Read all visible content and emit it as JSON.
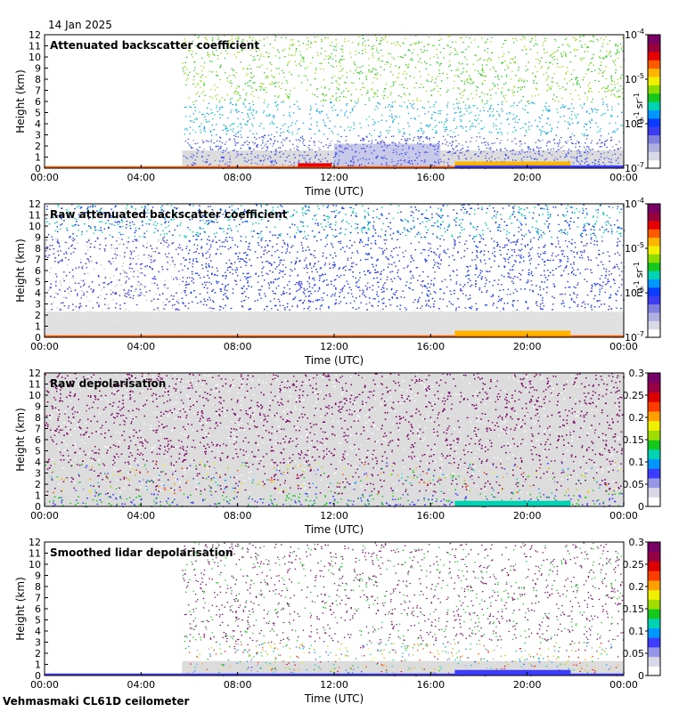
{
  "header": {
    "date": "14 Jan 2025"
  },
  "footer": {
    "instrument": "Vehmasmaki CL61D ceilometer"
  },
  "colors": {
    "background_data": "#dcdcdc",
    "log_scale": [
      "#ffffff",
      "#d8d8e6",
      "#b0b0e0",
      "#8080e0",
      "#3c3cf0",
      "#0a3cff",
      "#0096ff",
      "#00d2b4",
      "#14c81e",
      "#8cdc00",
      "#f0f000",
      "#ffb400",
      "#ff5a00",
      "#e60000",
      "#96003c",
      "#780064"
    ],
    "depol_scale": [
      "#ffffff",
      "#d8d8e6",
      "#9696e6",
      "#3c3cff",
      "#0096ff",
      "#00d2b4",
      "#14c81e",
      "#a0dc00",
      "#f0f000",
      "#ffa000",
      "#ff3c00",
      "#dc0000",
      "#960046",
      "#780064"
    ]
  },
  "chart_data": [
    {
      "type": "heatmap",
      "title": "Attenuated backscatter coefficient",
      "xlabel": "Time (UTC)",
      "ylabel": "Height (km)",
      "x_ticks": [
        "00:00",
        "04:00",
        "08:00",
        "12:00",
        "16:00",
        "20:00",
        "00:00"
      ],
      "y_ticks": [
        "0",
        "1",
        "2",
        "3",
        "4",
        "5",
        "6",
        "7",
        "8",
        "9",
        "10",
        "11",
        "12"
      ],
      "ylim": [
        0,
        12
      ],
      "xlim_hours": [
        0,
        24
      ],
      "colorbar": {
        "scale": "log",
        "range": [
          1e-07,
          0.0001
        ],
        "ticks": [
          {
            "base": "10",
            "exp": "-4"
          },
          {
            "base": "10",
            "exp": "-5"
          },
          {
            "base": "10",
            "exp": "-6"
          },
          {
            "base": "10",
            "exp": "-7"
          }
        ],
        "unit": {
          "a": "m",
          "a_exp": "-1",
          "b": "sr",
          "b_exp": "-1"
        }
      },
      "features": {
        "no_data_before_hour": 5.7,
        "cloud_layers": [
          {
            "start_hour": 10.5,
            "end_hour": 11.9,
            "height_km": 0.3
          },
          {
            "start_hour": 17.0,
            "end_hour": 21.8,
            "height_km": 0.4
          }
        ]
      }
    },
    {
      "type": "heatmap",
      "title": "Raw attenuated backscatter coefficient",
      "xlabel": "Time (UTC)",
      "ylabel": "Height (km)",
      "x_ticks": [
        "00:00",
        "04:00",
        "08:00",
        "12:00",
        "16:00",
        "20:00",
        "00:00"
      ],
      "y_ticks": [
        "0",
        "1",
        "2",
        "3",
        "4",
        "5",
        "6",
        "7",
        "8",
        "9",
        "10",
        "11",
        "12"
      ],
      "ylim": [
        0,
        12
      ],
      "xlim_hours": [
        0,
        24
      ],
      "colorbar": {
        "scale": "log",
        "range": [
          1e-07,
          0.0001
        ],
        "ticks": [
          {
            "base": "10",
            "exp": "-4"
          },
          {
            "base": "10",
            "exp": "-5"
          },
          {
            "base": "10",
            "exp": "-6"
          },
          {
            "base": "10",
            "exp": "-7"
          }
        ],
        "unit": {
          "a": "m",
          "a_exp": "-1",
          "b": "sr",
          "b_exp": "-1"
        }
      }
    },
    {
      "type": "heatmap",
      "title": "Raw depolarisation",
      "xlabel": "Time (UTC)",
      "ylabel": "Height (km)",
      "x_ticks": [
        "00:00",
        "04:00",
        "08:00",
        "12:00",
        "16:00",
        "20:00",
        "00:00"
      ],
      "y_ticks": [
        "0",
        "1",
        "2",
        "3",
        "4",
        "5",
        "6",
        "7",
        "8",
        "9",
        "10",
        "11",
        "12"
      ],
      "ylim": [
        0,
        12
      ],
      "xlim_hours": [
        0,
        24
      ],
      "colorbar": {
        "scale": "linear",
        "range": [
          0,
          0.3
        ],
        "ticks": [
          "0.3",
          "0.25",
          "0.2",
          "0.15",
          "0.1",
          "0.05",
          "0"
        ]
      }
    },
    {
      "type": "heatmap",
      "title": "Smoothed lidar depolarisation",
      "xlabel": "Time (UTC)",
      "ylabel": "Height (km)",
      "x_ticks": [
        "00:00",
        "04:00",
        "08:00",
        "12:00",
        "16:00",
        "20:00",
        "00:00"
      ],
      "y_ticks": [
        "0",
        "1",
        "2",
        "3",
        "4",
        "5",
        "6",
        "7",
        "8",
        "9",
        "10",
        "11",
        "12"
      ],
      "ylim": [
        0,
        12
      ],
      "xlim_hours": [
        0,
        24
      ],
      "colorbar": {
        "scale": "linear",
        "range": [
          0,
          0.3
        ],
        "ticks": [
          "0.3",
          "0.25",
          "0.2",
          "0.15",
          "0.1",
          "0.05",
          "0"
        ]
      }
    }
  ]
}
